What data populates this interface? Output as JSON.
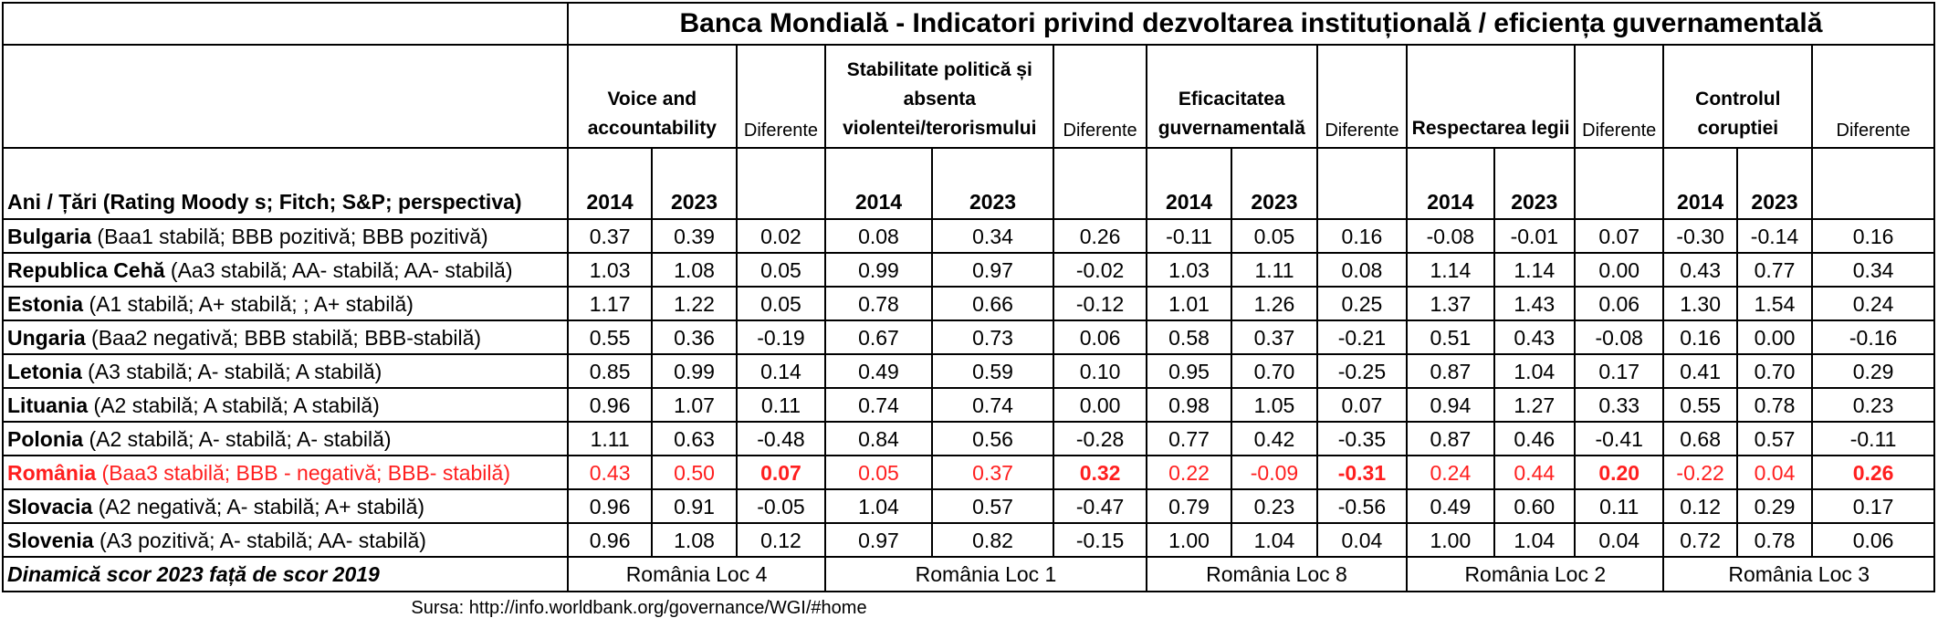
{
  "title": "Banca Mondială - Indicatori privind dezvoltarea instituțională / eficiența guvernamentală",
  "row_header": "Ani / Țări (Rating Moody s; Fitch; S&P; perspectiva)",
  "diff_label": "Diferente",
  "years": [
    "2014",
    "2023"
  ],
  "indicators": [
    {
      "name": "Voice and accountability"
    },
    {
      "name": "Stabilitate politică și absenta violentei/terorismului"
    },
    {
      "name": "Eficacitatea guvernamentală"
    },
    {
      "name": "Respectarea legii"
    },
    {
      "name": "Controlul coruptiei"
    }
  ],
  "rows": [
    {
      "country": "Bulgaria",
      "rating": " (Baa1 stabilă; BBB pozitivă; BBB pozitivă)",
      "values": [
        "0.37",
        "0.39",
        "0.02",
        "0.08",
        "0.34",
        "0.26",
        "-0.11",
        "0.05",
        "0.16",
        "-0.08",
        "-0.01",
        "0.07",
        "-0.30",
        "-0.14",
        "0.16"
      ]
    },
    {
      "country": "Republica Cehă",
      "rating": " (Aa3 stabilă; AA- stabilă; AA- stabilă)",
      "values": [
        "1.03",
        "1.08",
        "0.05",
        "0.99",
        "0.97",
        "-0.02",
        "1.03",
        "1.11",
        "0.08",
        "1.14",
        "1.14",
        "0.00",
        "0.43",
        "0.77",
        "0.34"
      ]
    },
    {
      "country": "Estonia",
      "rating": " (A1 stabilă; A+ stabilă; ; A+ stabilă)",
      "values": [
        "1.17",
        "1.22",
        "0.05",
        "0.78",
        "0.66",
        "-0.12",
        "1.01",
        "1.26",
        "0.25",
        "1.37",
        "1.43",
        "0.06",
        "1.30",
        "1.54",
        "0.24"
      ]
    },
    {
      "country": "Ungaria",
      "rating": " (Baa2 negativă; BBB stabilă; BBB-stabilă)",
      "values": [
        "0.55",
        "0.36",
        "-0.19",
        "0.67",
        "0.73",
        "0.06",
        "0.58",
        "0.37",
        "-0.21",
        "0.51",
        "0.43",
        "-0.08",
        "0.16",
        "0.00",
        "-0.16"
      ]
    },
    {
      "country": "Letonia",
      "rating": " (A3 stabilă; A- stabilă; A stabilă)",
      "values": [
        "0.85",
        "0.99",
        "0.14",
        "0.49",
        "0.59",
        "0.10",
        "0.95",
        "0.70",
        "-0.25",
        "0.87",
        "1.04",
        "0.17",
        "0.41",
        "0.70",
        "0.29"
      ]
    },
    {
      "country": "Lituania",
      "rating": " (A2 stabilă; A stabilă; A stabilă)",
      "values": [
        "0.96",
        "1.07",
        "0.11",
        "0.74",
        "0.74",
        "0.00",
        "0.98",
        "1.05",
        "0.07",
        "0.94",
        "1.27",
        "0.33",
        "0.55",
        "0.78",
        "0.23"
      ]
    },
    {
      "country": "Polonia",
      "rating": " (A2 stabilă; A- stabilă; A- stabilă)",
      "values": [
        "1.11",
        "0.63",
        "-0.48",
        "0.84",
        "0.56",
        "-0.28",
        "0.77",
        "0.42",
        "-0.35",
        "0.87",
        "0.46",
        "-0.41",
        "0.68",
        "0.57",
        "-0.11"
      ]
    },
    {
      "country": "România",
      "rating": " (Baa3 stabilă; BBB - negativă; BBB- stabilă)",
      "highlight": true,
      "values": [
        "0.43",
        "0.50",
        "0.07",
        "0.05",
        "0.37",
        "0.32",
        "0.22",
        "-0.09",
        "-0.31",
        "0.24",
        "0.44",
        "0.20",
        "-0.22",
        "0.04",
        "0.26"
      ]
    },
    {
      "country": "Slovacia",
      "rating": " (A2 negativă; A- stabilă; A+ stabilă)",
      "values": [
        "0.96",
        "0.91",
        "-0.05",
        "1.04",
        "0.57",
        "-0.47",
        "0.79",
        "0.23",
        "-0.56",
        "0.49",
        "0.60",
        "0.11",
        "0.12",
        "0.29",
        "0.17"
      ]
    },
    {
      "country": "Slovenia",
      "rating": " (A3 pozitivă; A- stabilă; AA- stabilă)",
      "values": [
        "0.96",
        "1.08",
        "0.12",
        "0.97",
        "0.82",
        "-0.15",
        "1.00",
        "1.04",
        "0.04",
        "1.00",
        "1.04",
        "0.04",
        "0.72",
        "0.78",
        "0.06"
      ]
    }
  ],
  "footer_label": "Dinamică scor 2023 față de scor 2019",
  "footer_values": [
    "România Loc 4",
    "România Loc 1",
    "România Loc 8",
    "România Loc 2",
    "România Loc 3"
  ],
  "source": "Sursa: http://info.worldbank.org/governance/WGI/#home",
  "colors": {
    "highlight": "#ff1f1f",
    "border": "#000000",
    "background": "#ffffff"
  }
}
